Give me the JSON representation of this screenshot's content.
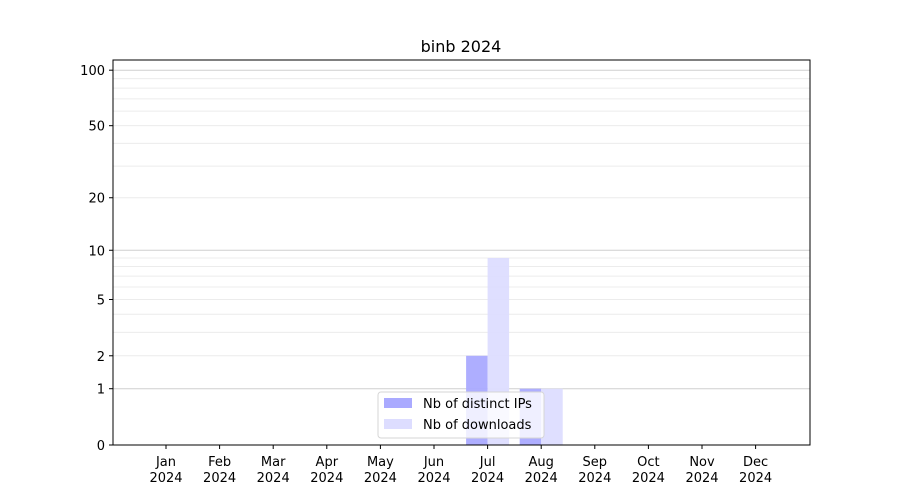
{
  "chart_data": {
    "type": "bar",
    "title": "binb 2024",
    "xlabel": "",
    "ylabel": "",
    "y_scale": "log(1+y)",
    "ylim": [
      0,
      113
    ],
    "grid": "horizontal major and minor",
    "legend_placement": "bottom-center",
    "categories": [
      "Jan\n2024",
      "Feb\n2024",
      "Mar\n2024",
      "Apr\n2024",
      "May\n2024",
      "Jun\n2024",
      "Jul\n2024",
      "Aug\n2024",
      "Sep\n2024",
      "Oct\n2024",
      "Nov\n2024",
      "Dec\n2024"
    ],
    "y_ticks": [
      0,
      1,
      2,
      5,
      10,
      20,
      50,
      100
    ],
    "series": [
      {
        "name": "Nb of distinct IPs",
        "color": "#aaaaff",
        "values": [
          0,
          0,
          0,
          0,
          0,
          0,
          2,
          1,
          0,
          0,
          0,
          0
        ]
      },
      {
        "name": "Nb of downloads",
        "color": "#ddddff",
        "values": [
          0,
          0,
          0,
          0,
          0,
          0,
          9,
          1,
          0,
          0,
          0,
          0
        ]
      }
    ]
  }
}
